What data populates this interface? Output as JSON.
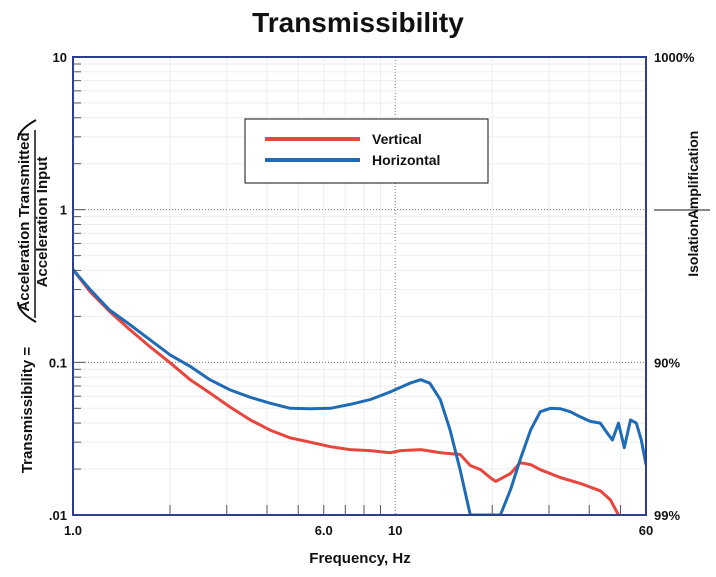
{
  "chart_data": {
    "type": "line",
    "title": "Transmissibility",
    "xlabel": "Frequency, Hz",
    "ylabel_prefix": "Transmissibility =",
    "ylabel_numerator": "Acceleration Transmitted",
    "ylabel_denominator": "Acceleration Input",
    "right_label_top": "Amplification",
    "right_label_bottom": "Isolation",
    "x_scale": "log",
    "y_scale": "log",
    "xlim": [
      1,
      60
    ],
    "ylim": [
      0.01,
      10
    ],
    "x_ticks": [
      {
        "v": 1,
        "label": "1.0"
      },
      {
        "v": 6,
        "label": "6.0"
      },
      {
        "v": 10,
        "label": "10"
      },
      {
        "v": 60,
        "label": "60"
      }
    ],
    "y_ticks": [
      {
        "v": 10,
        "label": "10"
      },
      {
        "v": 1,
        "label": "1"
      },
      {
        "v": 0.1,
        "label": "0.1"
      },
      {
        "v": 0.01,
        "label": ".01"
      }
    ],
    "right_ticks": [
      {
        "v": 10,
        "label": "1000%"
      },
      {
        "v": 0.1,
        "label": "90%"
      },
      {
        "v": 0.01,
        "label": "99%"
      }
    ],
    "grid": true,
    "legend_position": "top-center",
    "series": [
      {
        "name": "Vertical",
        "color": "#e8453c",
        "points": [
          [
            1.0,
            0.405
          ],
          [
            1.13,
            0.29
          ],
          [
            1.3,
            0.215
          ],
          [
            1.5,
            0.164
          ],
          [
            1.73,
            0.127
          ],
          [
            2.0,
            0.0995
          ],
          [
            2.31,
            0.077
          ],
          [
            2.66,
            0.063
          ],
          [
            3.07,
            0.051
          ],
          [
            3.55,
            0.042
          ],
          [
            4.09,
            0.036
          ],
          [
            4.72,
            0.032
          ],
          [
            5.45,
            0.03
          ],
          [
            6.29,
            0.028
          ],
          [
            7.25,
            0.0268
          ],
          [
            8.36,
            0.0264
          ],
          [
            9.65,
            0.0256
          ],
          [
            10.4,
            0.0264
          ],
          [
            12.0,
            0.0268
          ],
          [
            13.8,
            0.0256
          ],
          [
            15.9,
            0.0249
          ],
          [
            17.1,
            0.0211
          ],
          [
            18.4,
            0.0198
          ],
          [
            19.7,
            0.0176
          ],
          [
            20.5,
            0.0166
          ],
          [
            22.8,
            0.0187
          ],
          [
            24.4,
            0.022
          ],
          [
            26.3,
            0.0214
          ],
          [
            28.2,
            0.0198
          ],
          [
            32.5,
            0.0176
          ],
          [
            37.5,
            0.0161
          ],
          [
            43.3,
            0.0144
          ],
          [
            46.5,
            0.0126
          ],
          [
            49.3,
            0.01
          ]
        ]
      },
      {
        "name": "Horizontal",
        "color": "#1f6bb5",
        "points": [
          [
            1.0,
            0.405
          ],
          [
            1.13,
            0.3
          ],
          [
            1.3,
            0.22
          ],
          [
            1.5,
            0.177
          ],
          [
            1.73,
            0.141
          ],
          [
            2.0,
            0.112
          ],
          [
            2.31,
            0.094
          ],
          [
            2.66,
            0.077
          ],
          [
            3.07,
            0.066
          ],
          [
            3.55,
            0.059
          ],
          [
            4.09,
            0.054
          ],
          [
            4.72,
            0.05
          ],
          [
            5.45,
            0.0497
          ],
          [
            6.29,
            0.05
          ],
          [
            7.25,
            0.053
          ],
          [
            8.36,
            0.057
          ],
          [
            9.65,
            0.064
          ],
          [
            11.1,
            0.073
          ],
          [
            12.0,
            0.077
          ],
          [
            12.8,
            0.073
          ],
          [
            13.8,
            0.057
          ],
          [
            14.8,
            0.036
          ],
          [
            15.9,
            0.0198
          ],
          [
            17.1,
            0.01
          ],
          [
            21.2,
            0.01
          ],
          [
            22.8,
            0.0147
          ],
          [
            24.4,
            0.023
          ],
          [
            26.3,
            0.036
          ],
          [
            28.2,
            0.0475
          ],
          [
            30.3,
            0.05
          ],
          [
            32.5,
            0.0497
          ],
          [
            34.9,
            0.0475
          ],
          [
            37.5,
            0.044
          ],
          [
            40.3,
            0.041
          ],
          [
            43.3,
            0.04
          ],
          [
            45.2,
            0.035
          ],
          [
            47.2,
            0.031
          ],
          [
            49.3,
            0.04
          ],
          [
            51.4,
            0.0276
          ],
          [
            53.7,
            0.042
          ],
          [
            56.0,
            0.04
          ],
          [
            58.0,
            0.031
          ],
          [
            60,
            0.0214
          ]
        ]
      }
    ]
  }
}
